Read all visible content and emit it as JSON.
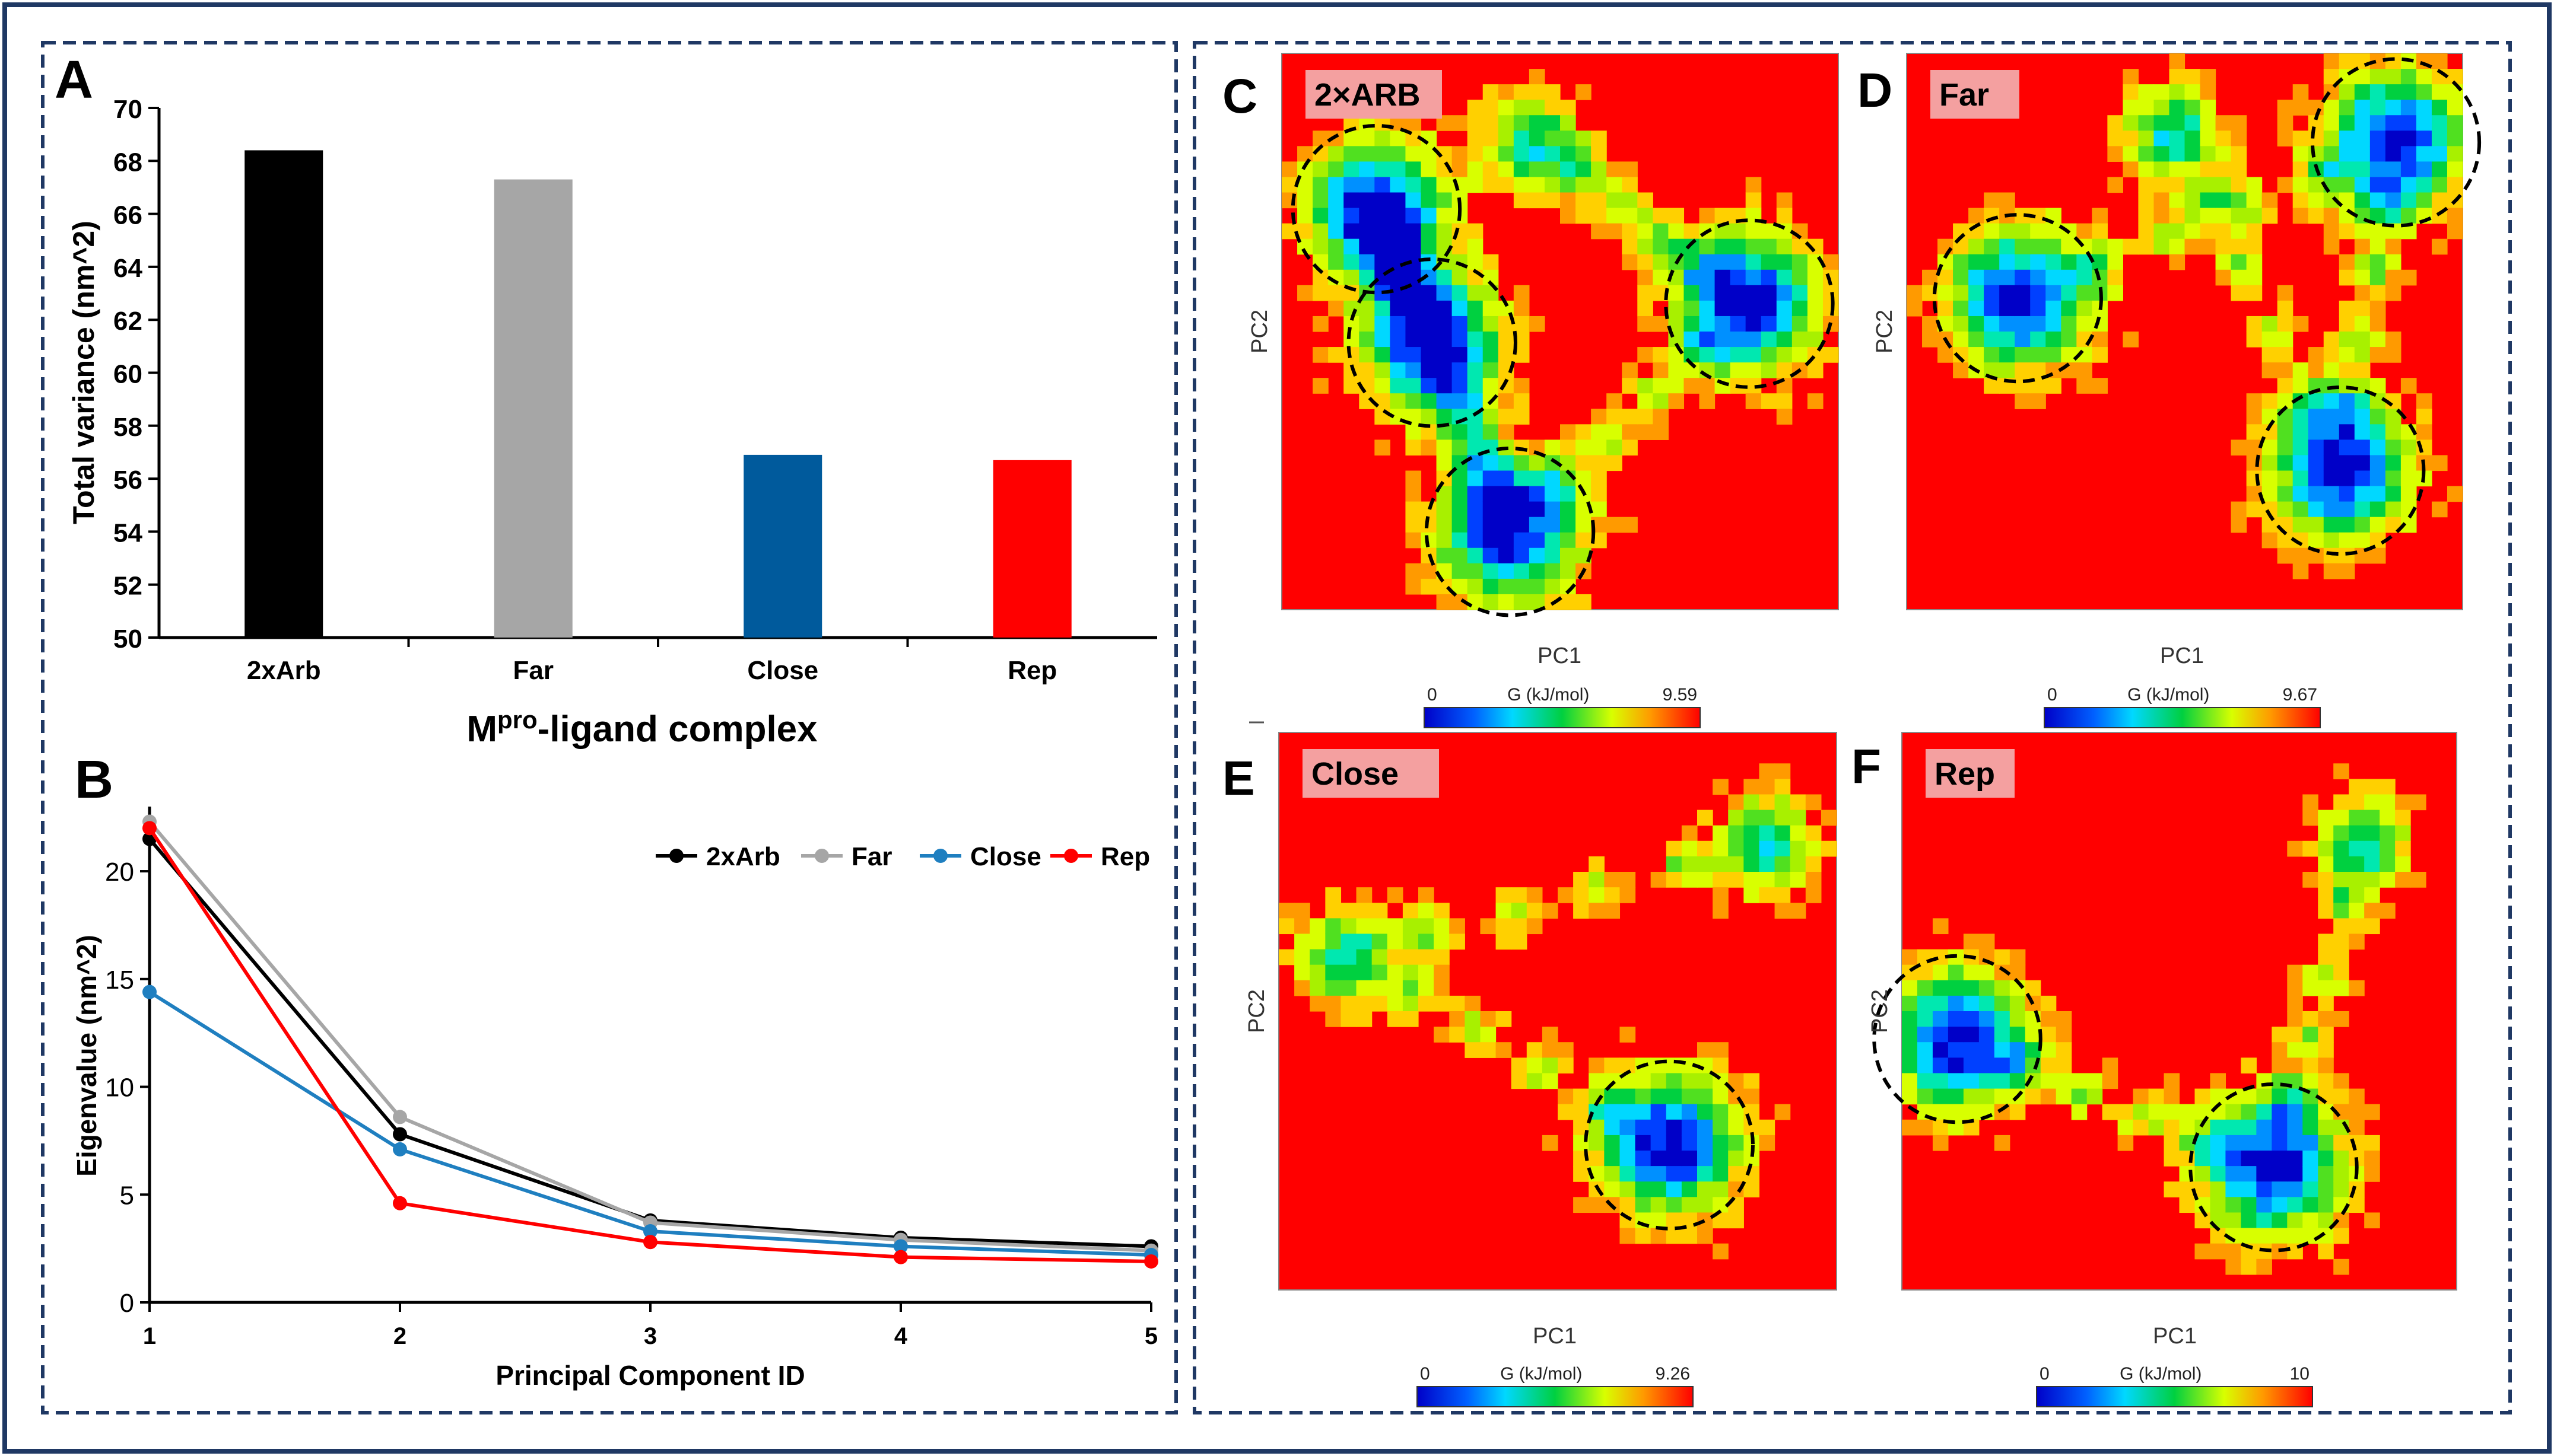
{
  "colors": {
    "border_outer": "#1f3864",
    "border_dash": "#1f3864",
    "bar_colors": [
      "#000000",
      "#a6a6a6",
      "#005a9c",
      "#ff0000"
    ],
    "line_colors": [
      "#000000",
      "#a6a6a6",
      "#1f7fc0",
      "#ff0000"
    ],
    "heatmap_bg": "#ff0000",
    "tag_bg": "#f4a0a0"
  },
  "panels": {
    "A": {
      "letter": "A"
    },
    "B": {
      "letter": "B"
    },
    "C": {
      "letter": "C",
      "tag": "2×ARB",
      "xlabel": "PC1",
      "ylabel": "PC2",
      "cbar_title": "G (kJ/mol)",
      "cbar_min": "0",
      "cbar_max": "9.59"
    },
    "D": {
      "letter": "D",
      "tag": "Far",
      "xlabel": "PC1",
      "ylabel": "PC2",
      "cbar_title": "G (kJ/mol)",
      "cbar_min": "0",
      "cbar_max": "9.67"
    },
    "E": {
      "letter": "E",
      "tag": "Close",
      "xlabel": "PC1",
      "ylabel": "PC2",
      "cbar_title": "G (kJ/mol)",
      "cbar_min": "0",
      "cbar_max": "9.26"
    },
    "F": {
      "letter": "F",
      "tag": "Rep",
      "xlabel": "PC1",
      "ylabel": "PC2",
      "cbar_title": "G (kJ/mol)",
      "cbar_min": "0",
      "cbar_max": "10"
    }
  },
  "chart_data": [
    {
      "id": "A",
      "type": "bar",
      "categories": [
        "2xArb",
        "Far",
        "Close",
        "Rep"
      ],
      "values": [
        68.4,
        67.3,
        56.9,
        56.7
      ],
      "title": "",
      "xlabel_main": "M",
      "xlabel_sup": "pro",
      "xlabel_rest": "-ligand complex",
      "ylabel": "Total variance (nm^2)",
      "ylim": [
        50,
        70
      ],
      "yticks": [
        "50",
        "52",
        "54",
        "56",
        "58",
        "60",
        "62",
        "64",
        "66",
        "68",
        "70"
      ]
    },
    {
      "id": "B",
      "type": "line",
      "x": [
        1,
        2,
        3,
        4,
        5
      ],
      "xticks": [
        "1",
        "2",
        "3",
        "4",
        "5"
      ],
      "series": [
        {
          "name": "2xArb",
          "values": [
            21.5,
            7.8,
            3.8,
            3.0,
            2.6
          ]
        },
        {
          "name": "Far",
          "values": [
            22.3,
            8.6,
            3.7,
            2.9,
            2.4
          ]
        },
        {
          "name": "Close",
          "values": [
            14.4,
            7.1,
            3.3,
            2.6,
            2.2
          ]
        },
        {
          "name": "Rep",
          "values": [
            22.0,
            4.6,
            2.8,
            2.1,
            1.9
          ]
        }
      ],
      "xlabel": "Principal Component ID",
      "ylabel": "Eigenvalue (nm^2)",
      "ylim": [
        0,
        23
      ],
      "yticks": [
        "0",
        "5",
        "10",
        "15",
        "20"
      ],
      "legend": "top-right"
    },
    {
      "id": "C",
      "type": "heatmap",
      "title": "2×ARB",
      "xlabel": "PC1",
      "ylabel": "PC2",
      "value_label": "G (kJ/mol)",
      "vmin": 0,
      "vmax": 9.59,
      "basins": [
        {
          "pc1": 0.17,
          "pc2": 0.72
        },
        {
          "pc1": 0.27,
          "pc2": 0.48
        },
        {
          "pc1": 0.41,
          "pc2": 0.14
        },
        {
          "pc1": 0.84,
          "pc2": 0.55
        }
      ],
      "minor_basins": [
        {
          "pc1": 0.45,
          "pc2": 0.84
        }
      ]
    },
    {
      "id": "D",
      "type": "heatmap",
      "title": "Far",
      "xlabel": "PC1",
      "ylabel": "PC2",
      "value_label": "G (kJ/mol)",
      "vmin": 0,
      "vmax": 9.67,
      "basins": [
        {
          "pc1": 0.2,
          "pc2": 0.56
        },
        {
          "pc1": 0.88,
          "pc2": 0.84
        },
        {
          "pc1": 0.78,
          "pc2": 0.25
        }
      ],
      "minor_basins": [
        {
          "pc1": 0.48,
          "pc2": 0.86
        }
      ]
    },
    {
      "id": "E",
      "type": "heatmap",
      "title": "Close",
      "xlabel": "PC1",
      "ylabel": "PC2",
      "value_label": "G (kJ/mol)",
      "vmin": 0,
      "vmax": 9.26,
      "basins": [
        {
          "pc1": 0.7,
          "pc2": 0.26
        }
      ],
      "minor_basins": [
        {
          "pc1": 0.12,
          "pc2": 0.6
        },
        {
          "pc1": 0.87,
          "pc2": 0.8
        }
      ]
    },
    {
      "id": "F",
      "type": "heatmap",
      "title": "Rep",
      "xlabel": "PC1",
      "ylabel": "PC2",
      "value_label": "G (kJ/mol)",
      "vmin": 0,
      "vmax": 10,
      "basins": [
        {
          "pc1": 0.1,
          "pc2": 0.45
        },
        {
          "pc1": 0.67,
          "pc2": 0.22
        }
      ],
      "minor_basins": [
        {
          "pc1": 0.83,
          "pc2": 0.8
        }
      ]
    }
  ]
}
